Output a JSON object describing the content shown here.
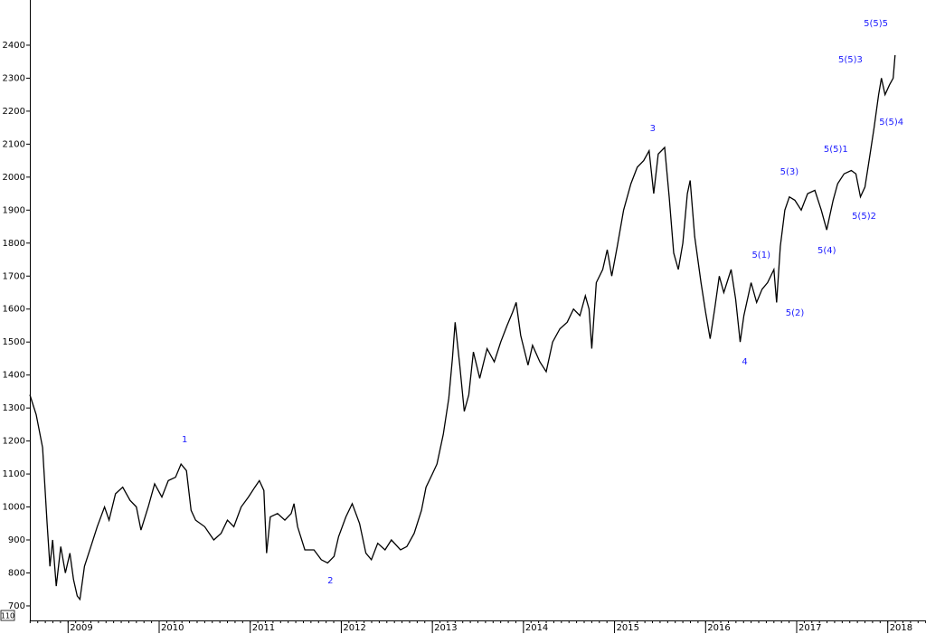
{
  "chart_data": {
    "type": "line",
    "color": "#000000",
    "annotation_color": "#1a1aff",
    "corner_label": "110",
    "xlim": [
      2008.58,
      2018.42
    ],
    "ylim": [
      656,
      2537
    ],
    "xticks": [
      2009,
      2010,
      2011,
      2012,
      2013,
      2014,
      2015,
      2016,
      2017,
      2018
    ],
    "yticks": [
      700,
      800,
      900,
      1000,
      1100,
      1200,
      1300,
      1400,
      1500,
      1600,
      1700,
      1800,
      1900,
      2000,
      2100,
      2200,
      2300,
      2400
    ],
    "x": [
      2008.58,
      2008.65,
      2008.72,
      2008.77,
      2008.8,
      2008.83,
      2008.87,
      2008.92,
      2008.97,
      2009.02,
      2009.06,
      2009.1,
      2009.13,
      2009.18,
      2009.25,
      2009.32,
      2009.4,
      2009.45,
      2009.52,
      2009.6,
      2009.68,
      2009.75,
      2009.8,
      2009.88,
      2009.95,
      2010.03,
      2010.1,
      2010.18,
      2010.24,
      2010.3,
      2010.35,
      2010.4,
      2010.5,
      2010.6,
      2010.68,
      2010.75,
      2010.82,
      2010.9,
      2010.98,
      2011.05,
      2011.1,
      2011.15,
      2011.18,
      2011.22,
      2011.3,
      2011.38,
      2011.45,
      2011.48,
      2011.52,
      2011.6,
      2011.7,
      2011.78,
      2011.85,
      2011.92,
      2011.97,
      2012.05,
      2012.12,
      2012.2,
      2012.27,
      2012.33,
      2012.4,
      2012.48,
      2012.55,
      2012.65,
      2012.72,
      2012.8,
      2012.88,
      2012.93,
      2013.0,
      2013.05,
      2013.12,
      2013.18,
      2013.22,
      2013.25,
      2013.3,
      2013.35,
      2013.4,
      2013.45,
      2013.52,
      2013.6,
      2013.68,
      2013.75,
      2013.82,
      2013.88,
      2013.92,
      2013.97,
      2014.05,
      2014.1,
      2014.18,
      2014.25,
      2014.32,
      2014.4,
      2014.48,
      2014.55,
      2014.62,
      2014.68,
      2014.72,
      2014.75,
      2014.8,
      2014.87,
      2014.92,
      2014.97,
      2015.03,
      2015.1,
      2015.18,
      2015.25,
      2015.32,
      2015.38,
      2015.43,
      2015.48,
      2015.55,
      2015.6,
      2015.65,
      2015.7,
      2015.75,
      2015.8,
      2015.83,
      2015.88,
      2015.95,
      2016.0,
      2016.05,
      2016.1,
      2016.15,
      2016.2,
      2016.28,
      2016.33,
      2016.38,
      2016.42,
      2016.5,
      2016.56,
      2016.62,
      2016.68,
      2016.75,
      2016.78,
      2016.82,
      2016.87,
      2016.92,
      2016.98,
      2017.05,
      2017.12,
      2017.2,
      2017.27,
      2017.33,
      2017.4,
      2017.45,
      2017.52,
      2017.6,
      2017.65,
      2017.7,
      2017.75,
      2017.8,
      2017.85,
      2017.9,
      2017.93,
      2017.97,
      2018.02,
      2018.06,
      2018.08
    ],
    "values": [
      1340,
      1280,
      1180,
      950,
      820,
      900,
      760,
      880,
      800,
      860,
      780,
      730,
      720,
      820,
      880,
      940,
      1000,
      960,
      1040,
      1060,
      1020,
      1000,
      930,
      1000,
      1070,
      1030,
      1080,
      1090,
      1130,
      1110,
      990,
      960,
      940,
      900,
      920,
      960,
      940,
      1000,
      1030,
      1060,
      1080,
      1050,
      860,
      970,
      980,
      960,
      980,
      1010,
      940,
      870,
      870,
      840,
      830,
      850,
      910,
      970,
      1010,
      950,
      860,
      840,
      890,
      870,
      900,
      870,
      880,
      920,
      990,
      1060,
      1100,
      1130,
      1220,
      1330,
      1450,
      1560,
      1430,
      1290,
      1340,
      1470,
      1390,
      1480,
      1440,
      1500,
      1550,
      1590,
      1620,
      1520,
      1430,
      1490,
      1440,
      1410,
      1500,
      1540,
      1560,
      1600,
      1580,
      1640,
      1600,
      1480,
      1680,
      1720,
      1780,
      1700,
      1790,
      1900,
      1980,
      2030,
      2050,
      2080,
      1950,
      2070,
      2090,
      1940,
      1770,
      1720,
      1800,
      1950,
      1990,
      1820,
      1680,
      1590,
      1510,
      1600,
      1700,
      1650,
      1720,
      1630,
      1500,
      1580,
      1680,
      1620,
      1660,
      1680,
      1720,
      1620,
      1790,
      1900,
      1940,
      1930,
      1900,
      1950,
      1960,
      1900,
      1840,
      1930,
      1980,
      2010,
      2020,
      2010,
      1940,
      1970,
      2060,
      2150,
      2250,
      2300,
      2250,
      2280,
      2300,
      2370
    ],
    "annotations": [
      {
        "text": "1",
        "x": 2010.28,
        "y": 1204
      },
      {
        "text": "2",
        "x": 2011.88,
        "y": 777
      },
      {
        "text": "3",
        "x": 2015.42,
        "y": 2148
      },
      {
        "text": "4",
        "x": 2016.43,
        "y": 1440
      },
      {
        "text": "5(1)",
        "x": 2016.61,
        "y": 1764
      },
      {
        "text": "5(2)",
        "x": 2016.98,
        "y": 1588
      },
      {
        "text": "5(3)",
        "x": 2016.92,
        "y": 2016
      },
      {
        "text": "5(4)",
        "x": 2017.33,
        "y": 1778
      },
      {
        "text": "5(5)1",
        "x": 2017.43,
        "y": 2084
      },
      {
        "text": "5(5)2",
        "x": 2017.74,
        "y": 1882
      },
      {
        "text": "5(5)3",
        "x": 2017.59,
        "y": 2356
      },
      {
        "text": "5(5)4",
        "x": 2018.04,
        "y": 2167
      },
      {
        "text": "5(5)5",
        "x": 2017.87,
        "y": 2466
      }
    ]
  }
}
